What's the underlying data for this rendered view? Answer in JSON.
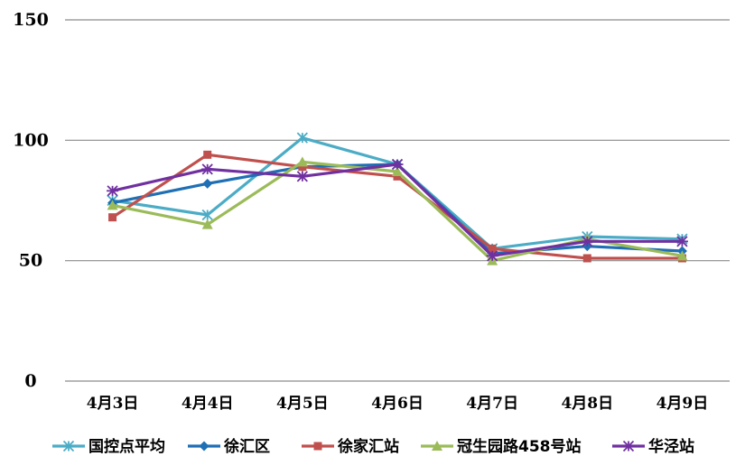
{
  "chart_data": {
    "type": "line",
    "title": "",
    "xlabel": "",
    "ylabel": "",
    "categories": [
      "4月3日",
      "4月4日",
      "4月5日",
      "4月6日",
      "4月7日",
      "4月8日",
      "4月9日"
    ],
    "ylim": [
      0,
      150
    ],
    "yticks": [
      "0",
      "50",
      "100",
      "150"
    ],
    "grid": true,
    "legend_position": "bottom",
    "series": [
      {
        "name": "国控点平均",
        "color": "#4BACC6",
        "marker": "asterisk-x",
        "values": [
          75,
          69,
          101,
          90,
          55,
          60,
          59
        ]
      },
      {
        "name": "徐汇区",
        "color": "#1F6FB5",
        "marker": "diamond",
        "values": [
          74,
          82,
          89,
          90,
          53,
          56,
          54
        ]
      },
      {
        "name": "徐家汇站",
        "color": "#C0504D",
        "marker": "square",
        "values": [
          68,
          94,
          89,
          85,
          55,
          51,
          51
        ]
      },
      {
        "name": "冠生园路458号站",
        "color": "#9BBB59",
        "marker": "triangle",
        "values": [
          73,
          65,
          91,
          87,
          50,
          59,
          52
        ]
      },
      {
        "name": "华泾站",
        "color": "#7030A0",
        "marker": "star",
        "values": [
          79,
          88,
          85,
          90,
          52,
          58,
          58
        ]
      }
    ]
  }
}
